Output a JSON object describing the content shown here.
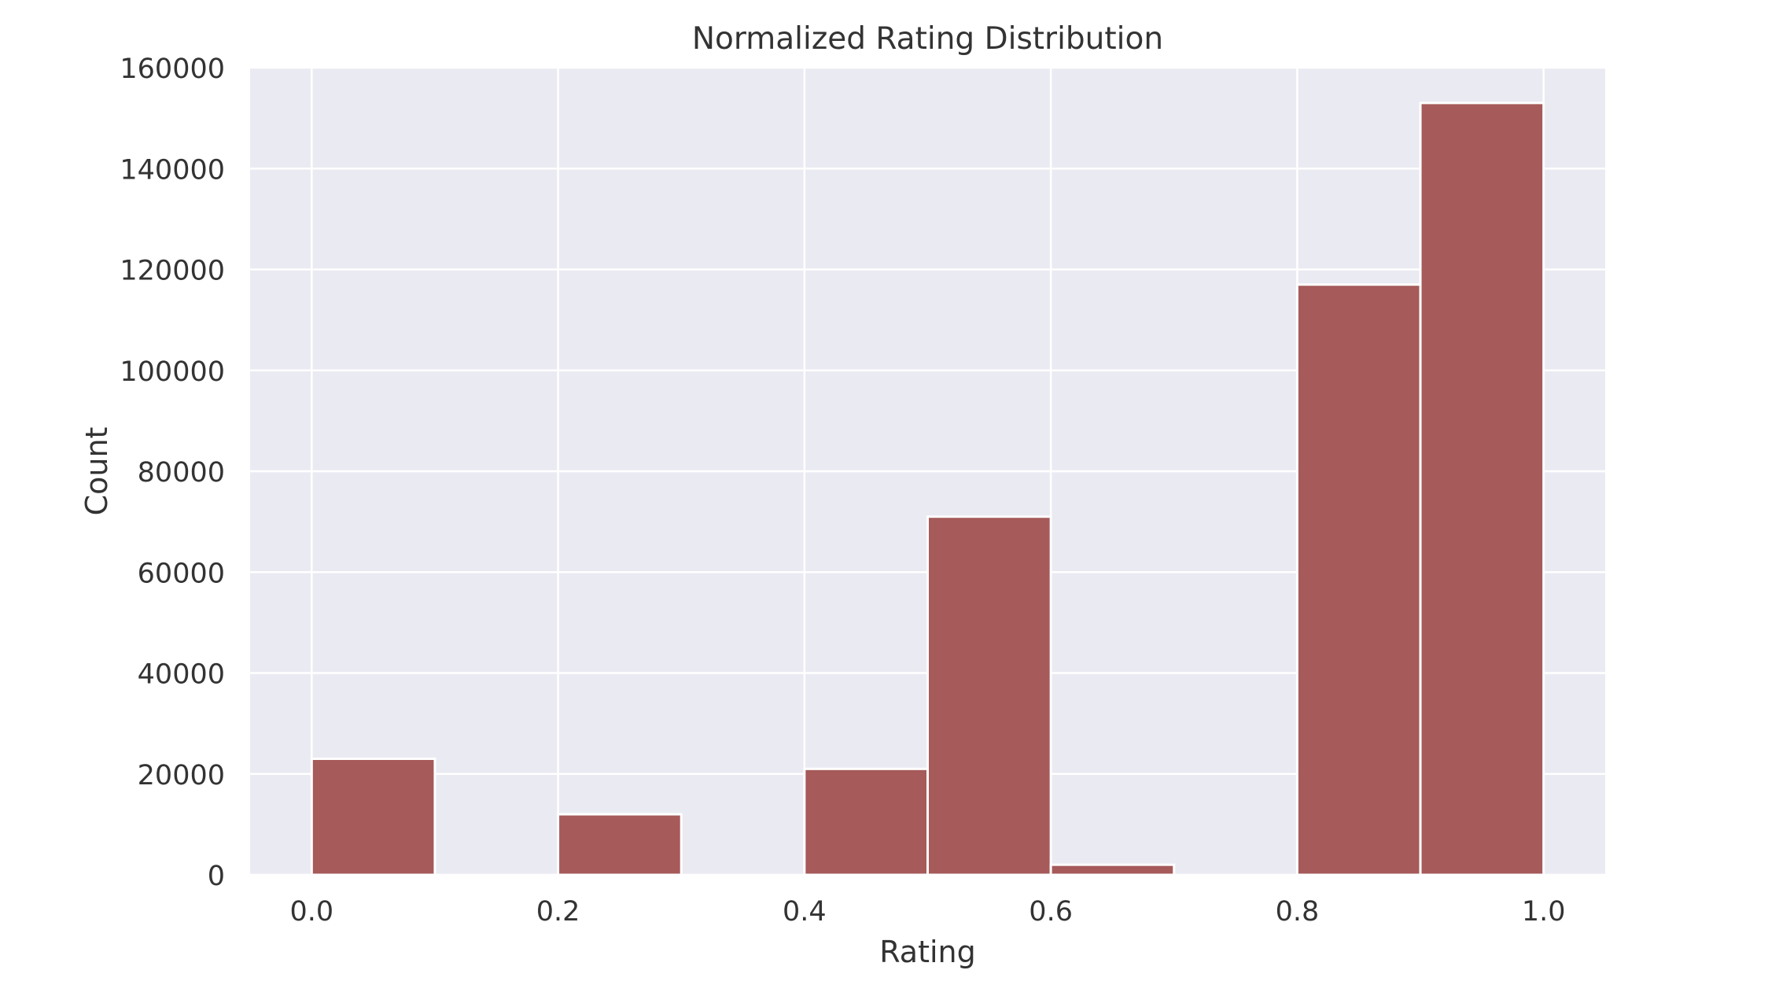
{
  "chart_data": {
    "type": "bar",
    "title": "Normalized  Rating Distribution",
    "xlabel": "Rating",
    "ylabel": "Count",
    "xlim": [
      -0.05,
      1.05
    ],
    "ylim": [
      0,
      160000
    ],
    "grid": true,
    "xticks": [
      0.0,
      0.2,
      0.4,
      0.6,
      0.8,
      1.0
    ],
    "xtick_labels": [
      "0.0",
      "0.2",
      "0.4",
      "0.6",
      "0.8",
      "1.0"
    ],
    "yticks": [
      0,
      20000,
      40000,
      60000,
      80000,
      100000,
      120000,
      140000,
      160000
    ],
    "ytick_labels": [
      "0",
      "20000",
      "40000",
      "60000",
      "80000",
      "100000",
      "120000",
      "140000",
      "160000"
    ],
    "bins": [
      {
        "start": 0.0,
        "end": 0.1,
        "count": 23000
      },
      {
        "start": 0.1,
        "end": 0.2,
        "count": 0
      },
      {
        "start": 0.2,
        "end": 0.3,
        "count": 12000
      },
      {
        "start": 0.3,
        "end": 0.4,
        "count": 0
      },
      {
        "start": 0.4,
        "end": 0.5,
        "count": 21000
      },
      {
        "start": 0.5,
        "end": 0.6,
        "count": 71000
      },
      {
        "start": 0.6,
        "end": 0.7,
        "count": 2000
      },
      {
        "start": 0.7,
        "end": 0.8,
        "count": 0
      },
      {
        "start": 0.8,
        "end": 0.9,
        "count": 117000
      },
      {
        "start": 0.9,
        "end": 1.0,
        "count": 153000
      }
    ],
    "colors": {
      "bar": "#a65a5a",
      "background": "#eaeaf2",
      "grid": "#ffffff",
      "text": "#333333"
    }
  }
}
